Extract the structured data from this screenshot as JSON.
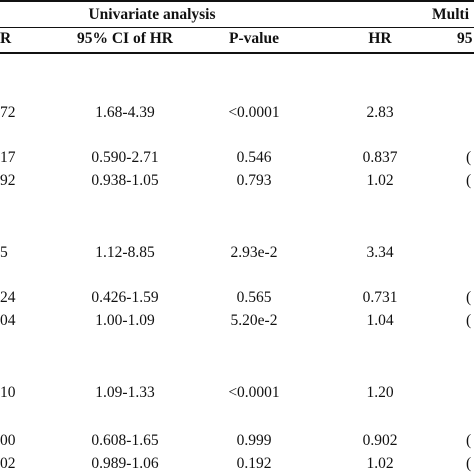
{
  "table": {
    "group_headers": {
      "univariate": "Univariate analysis",
      "multivariate": "Multi"
    },
    "columns": [
      "R",
      "95% CI of HR",
      "P-value",
      "HR",
      "95"
    ],
    "rows": [
      [
        "72",
        "1.68-4.39",
        "<0.0001",
        "2.83",
        ""
      ],
      [
        "17",
        "0.590-2.71",
        "0.546",
        "0.837",
        "("
      ],
      [
        "92",
        "0.938-1.05",
        "0.793",
        "1.02",
        "("
      ],
      [
        "5",
        "1.12-8.85",
        "2.93e-2",
        "3.34",
        ""
      ],
      [
        "24",
        "0.426-1.59",
        "0.565",
        "0.731",
        "("
      ],
      [
        "04",
        "1.00-1.09",
        "5.20e-2",
        "1.04",
        "("
      ],
      [
        "10",
        "1.09-1.33",
        "<0.0001",
        "1.20",
        ""
      ],
      [
        "00",
        "0.608-1.65",
        "0.999",
        "0.902",
        "("
      ],
      [
        "02",
        "0.989-1.06",
        "0.192",
        "1.02",
        "("
      ]
    ]
  }
}
